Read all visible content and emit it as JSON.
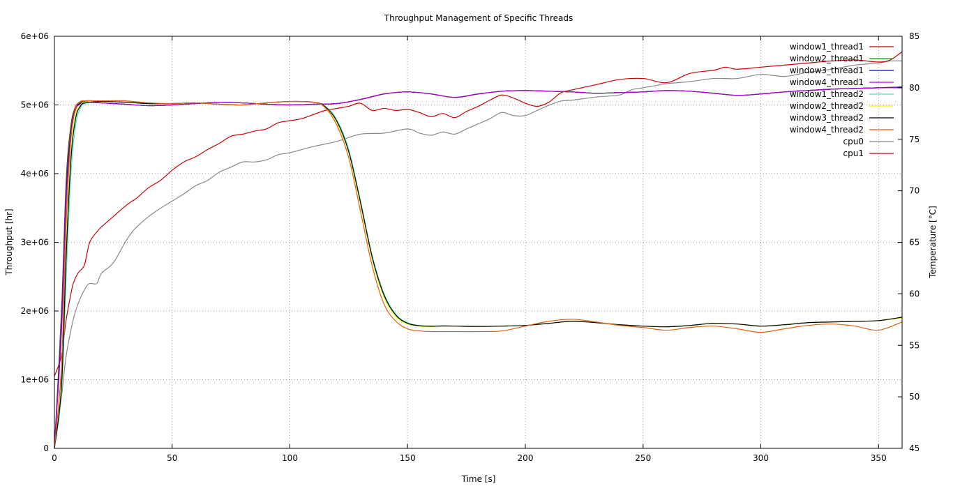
{
  "chart_data": {
    "type": "line",
    "title": "Throughput Management of Specific Threads",
    "xlabel": "Time [s]",
    "ylabel": "Throughput [hr]",
    "y2label": "Temperature [°C]",
    "xlim": [
      0,
      360
    ],
    "ylim": [
      0,
      6000000
    ],
    "y2lim": [
      45,
      85
    ],
    "grid": true,
    "legend_position": "top-right",
    "x_ticks": [
      0,
      50,
      100,
      150,
      200,
      250,
      300,
      350
    ],
    "x_tick_labels": [
      "0",
      "50",
      "100",
      "150",
      "200",
      "250",
      "300",
      "350"
    ],
    "y_ticks": [
      0,
      1000000,
      2000000,
      3000000,
      4000000,
      5000000,
      6000000
    ],
    "y_tick_labels": [
      "0",
      "1e+06",
      "2e+06",
      "3e+06",
      "4e+06",
      "5e+06",
      "6e+06"
    ],
    "y2_ticks": [
      45,
      50,
      55,
      60,
      65,
      70,
      75,
      80,
      85
    ],
    "y2_tick_labels": [
      "45",
      "50",
      "55",
      "60",
      "65",
      "70",
      "75",
      "80",
      "85"
    ],
    "series": [
      {
        "name": "window1_thread1",
        "color": "#cc0000",
        "axis": "y1",
        "x": [
          0,
          3,
          5,
          7,
          9,
          11,
          13,
          20,
          30,
          40,
          50,
          60,
          70,
          80,
          90,
          100,
          110,
          120,
          130,
          140,
          150,
          160,
          170,
          180,
          190,
          200,
          210,
          220,
          230,
          240,
          250,
          260,
          270,
          280,
          290,
          300,
          310,
          320,
          330,
          340,
          350,
          360
        ],
        "y": [
          0,
          2000000,
          3900000,
          4700000,
          4980000,
          5040000,
          5050000,
          5030000,
          5010000,
          4990000,
          5000000,
          5020000,
          5040000,
          5030000,
          5010000,
          5000000,
          5010000,
          5020000,
          5080000,
          5160000,
          5190000,
          5160000,
          5110000,
          5160000,
          5200000,
          5210000,
          5200000,
          5190000,
          5170000,
          5180000,
          5190000,
          5210000,
          5200000,
          5170000,
          5140000,
          5160000,
          5190000,
          5210000,
          5230000,
          5240000,
          5250000,
          5260000
        ]
      },
      {
        "name": "window2_thread1",
        "color": "#00a000",
        "axis": "y1",
        "x": [
          0,
          3,
          5,
          7,
          9,
          11,
          13,
          20,
          30,
          40,
          50,
          60,
          70,
          80,
          90,
          100,
          110,
          120,
          130,
          140,
          150,
          160,
          170,
          180,
          190,
          200,
          210,
          220,
          230,
          240,
          250,
          260,
          270,
          280,
          290,
          300,
          310,
          320,
          330,
          340,
          350,
          360
        ],
        "y": [
          0,
          1900000,
          3800000,
          4650000,
          4960000,
          5030000,
          5045000,
          5030000,
          5010000,
          4990000,
          5000000,
          5020000,
          5040000,
          5030000,
          5010000,
          5000000,
          5010000,
          5020000,
          5080000,
          5160000,
          5190000,
          5160000,
          5110000,
          5160000,
          5200000,
          5210000,
          5200000,
          5190000,
          5170000,
          5180000,
          5190000,
          5210000,
          5200000,
          5170000,
          5140000,
          5160000,
          5190000,
          5210000,
          5230000,
          5240000,
          5250000,
          5260000
        ]
      },
      {
        "name": "window3_thread1",
        "color": "#0000cc",
        "axis": "y1",
        "x": [
          0,
          3,
          5,
          7,
          9,
          11,
          13,
          20,
          30,
          40,
          50,
          60,
          70,
          80,
          90,
          100,
          110,
          120,
          130,
          140,
          150,
          160,
          170,
          180,
          190,
          200,
          210,
          220,
          230,
          240,
          250,
          260,
          270,
          280,
          290,
          300,
          310,
          320,
          330,
          340,
          350,
          360
        ],
        "y": [
          0,
          1800000,
          3700000,
          4600000,
          4950000,
          5020000,
          5040000,
          5030000,
          5010000,
          4990000,
          5000000,
          5020000,
          5040000,
          5030000,
          5010000,
          5000000,
          5010000,
          5020000,
          5080000,
          5160000,
          5190000,
          5160000,
          5110000,
          5160000,
          5200000,
          5210000,
          5200000,
          5190000,
          5170000,
          5180000,
          5190000,
          5210000,
          5200000,
          5170000,
          5140000,
          5160000,
          5190000,
          5210000,
          5230000,
          5240000,
          5250000,
          5260000
        ]
      },
      {
        "name": "window4_thread1",
        "color": "#b000d0",
        "axis": "y1",
        "x": [
          0,
          3,
          5,
          7,
          9,
          11,
          13,
          20,
          30,
          40,
          50,
          60,
          70,
          80,
          90,
          100,
          110,
          120,
          130,
          140,
          150,
          160,
          170,
          180,
          190,
          200,
          210,
          220,
          230,
          240,
          250,
          260,
          270,
          280,
          290,
          300,
          310,
          320,
          330,
          340,
          350,
          360
        ],
        "y": [
          0,
          1700000,
          3600000,
          4550000,
          4930000,
          5010000,
          5035000,
          5030000,
          5010000,
          4990000,
          5000000,
          5020000,
          5040000,
          5030000,
          5010000,
          5000000,
          5010000,
          5020000,
          5080000,
          5160000,
          5190000,
          5160000,
          5110000,
          5160000,
          5200000,
          5210000,
          5200000,
          5190000,
          5170000,
          5180000,
          5190000,
          5210000,
          5200000,
          5170000,
          5140000,
          5160000,
          5190000,
          5210000,
          5230000,
          5240000,
          5250000,
          5250000
        ]
      },
      {
        "name": "window1_thread2",
        "color": "#40e0d0",
        "axis": "y1",
        "x": [
          0,
          3,
          5,
          7,
          9,
          11,
          13,
          20,
          30,
          40,
          50,
          60,
          70,
          80,
          90,
          100,
          110,
          115,
          120,
          125,
          130,
          135,
          140,
          145,
          150,
          155,
          160,
          165,
          170,
          180,
          190,
          200,
          210,
          220,
          230,
          240,
          250,
          260,
          270,
          280,
          290,
          300,
          310,
          320,
          330,
          340,
          350,
          360
        ],
        "y": [
          0,
          800000,
          2500000,
          4000000,
          4700000,
          4950000,
          5020000,
          5050000,
          5040000,
          5020000,
          5020000,
          5030000,
          5010000,
          5000000,
          5030000,
          5050000,
          5040000,
          4980000,
          4780000,
          4350000,
          3600000,
          2800000,
          2250000,
          1950000,
          1830000,
          1790000,
          1780000,
          1785000,
          1780000,
          1775000,
          1780000,
          1790000,
          1820000,
          1850000,
          1830000,
          1800000,
          1780000,
          1770000,
          1790000,
          1820000,
          1810000,
          1780000,
          1800000,
          1830000,
          1840000,
          1850000,
          1860000,
          1900000
        ]
      },
      {
        "name": "window2_thread2",
        "color": "#f0f000",
        "axis": "y1",
        "x": [
          0,
          3,
          5,
          7,
          9,
          11,
          13,
          20,
          30,
          40,
          50,
          60,
          70,
          80,
          90,
          100,
          110,
          115,
          120,
          125,
          130,
          135,
          140,
          145,
          150,
          155,
          160,
          165,
          170,
          180,
          190,
          200,
          210,
          220,
          230,
          240,
          250,
          260,
          270,
          280,
          290,
          300,
          310,
          320,
          330,
          340,
          350,
          360
        ],
        "y": [
          0,
          1000000,
          3000000,
          4300000,
          4850000,
          5000000,
          5040000,
          5050000,
          5050000,
          5030000,
          5020000,
          5030000,
          5010000,
          5000000,
          5030000,
          5050000,
          5040000,
          4970000,
          4740000,
          4300000,
          3550000,
          2750000,
          2200000,
          1920000,
          1810000,
          1780000,
          1775000,
          1780000,
          1780000,
          1775000,
          1780000,
          1790000,
          1820000,
          1850000,
          1830000,
          1800000,
          1780000,
          1770000,
          1790000,
          1820000,
          1810000,
          1780000,
          1800000,
          1830000,
          1840000,
          1850000,
          1860000,
          1900000
        ]
      },
      {
        "name": "window3_thread2",
        "color": "#000000",
        "axis": "y1",
        "x": [
          0,
          3,
          5,
          7,
          9,
          11,
          13,
          20,
          30,
          40,
          50,
          60,
          70,
          80,
          90,
          100,
          110,
          115,
          120,
          125,
          130,
          135,
          140,
          145,
          150,
          155,
          160,
          165,
          170,
          180,
          190,
          200,
          210,
          220,
          230,
          240,
          250,
          260,
          270,
          280,
          290,
          300,
          310,
          320,
          330,
          340,
          350,
          360
        ],
        "y": [
          0,
          900000,
          2800000,
          4200000,
          4800000,
          4980000,
          5030000,
          5050000,
          5040000,
          5020000,
          5020000,
          5030000,
          5010000,
          5000000,
          5030000,
          5050000,
          5040000,
          4975000,
          4760000,
          4320000,
          3580000,
          2780000,
          2230000,
          1940000,
          1820000,
          1785000,
          1778000,
          1782000,
          1780000,
          1775000,
          1780000,
          1790000,
          1820000,
          1850000,
          1830000,
          1800000,
          1780000,
          1770000,
          1790000,
          1820000,
          1810000,
          1780000,
          1800000,
          1830000,
          1840000,
          1850000,
          1860000,
          1910000
        ]
      },
      {
        "name": "window4_thread2",
        "color": "#e06010",
        "axis": "y1",
        "x": [
          0,
          3,
          5,
          7,
          9,
          11,
          13,
          20,
          30,
          40,
          50,
          60,
          70,
          80,
          90,
          100,
          110,
          115,
          120,
          125,
          130,
          135,
          140,
          145,
          150,
          155,
          160,
          165,
          170,
          180,
          190,
          200,
          210,
          220,
          230,
          240,
          250,
          260,
          270,
          280,
          290,
          300,
          310,
          320,
          330,
          340,
          350,
          360
        ],
        "y": [
          0,
          1200000,
          3300000,
          4500000,
          4950000,
          5050000,
          5060000,
          5060000,
          5060000,
          5030000,
          5020000,
          5030000,
          5010000,
          5000000,
          5030000,
          5050000,
          5040000,
          4960000,
          4700000,
          4230000,
          3450000,
          2650000,
          2100000,
          1850000,
          1740000,
          1710000,
          1700000,
          1700000,
          1700000,
          1700000,
          1710000,
          1780000,
          1850000,
          1880000,
          1840000,
          1790000,
          1760000,
          1720000,
          1760000,
          1780000,
          1740000,
          1690000,
          1740000,
          1790000,
          1810000,
          1780000,
          1720000,
          1840000
        ]
      },
      {
        "name": "cpu0",
        "color": "#888888",
        "axis": "y2",
        "x": [
          0,
          3,
          5,
          8,
          10,
          13,
          15,
          18,
          20,
          25,
          30,
          33,
          35,
          40,
          45,
          50,
          55,
          60,
          65,
          70,
          75,
          80,
          85,
          90,
          95,
          100,
          110,
          120,
          130,
          140,
          150,
          155,
          160,
          165,
          170,
          175,
          180,
          185,
          190,
          195,
          200,
          205,
          210,
          215,
          220,
          230,
          240,
          245,
          250,
          255,
          260,
          270,
          280,
          290,
          300,
          310,
          320,
          330,
          340,
          350,
          355,
          360
        ],
        "y": [
          45,
          50,
          54,
          57.5,
          59,
          60.5,
          61,
          61,
          62,
          63,
          65,
          66,
          66.5,
          67.5,
          68.3,
          69,
          69.7,
          70.5,
          71,
          71.8,
          72.3,
          72.8,
          72.8,
          73,
          73.5,
          73.7,
          74.3,
          74.8,
          75.5,
          75.6,
          76,
          75.6,
          75.4,
          75.7,
          75.5,
          76,
          76.5,
          77,
          77.6,
          77.3,
          77.3,
          77.8,
          78.3,
          78.7,
          78.8,
          79.1,
          79.3,
          79.8,
          80,
          80.2,
          80.4,
          80.6,
          80.9,
          80.9,
          81.3,
          81.1,
          81.5,
          81.8,
          82.2,
          82.4,
          82.6,
          82.6
        ]
      },
      {
        "name": "cpu1",
        "color": "#cc0000",
        "axis": "y2",
        "x": [
          0,
          3,
          5,
          7,
          8,
          10,
          12,
          13,
          15,
          18,
          20,
          25,
          30,
          33,
          35,
          40,
          45,
          50,
          55,
          60,
          65,
          70,
          75,
          80,
          85,
          90,
          95,
          100,
          105,
          110,
          115,
          120,
          125,
          130,
          135,
          140,
          145,
          150,
          155,
          160,
          165,
          170,
          175,
          180,
          185,
          190,
          195,
          200,
          205,
          210,
          215,
          220,
          230,
          240,
          250,
          260,
          270,
          280,
          285,
          290,
          300,
          310,
          320,
          330,
          340,
          350,
          355,
          360
        ],
        "y": [
          52,
          54,
          57.5,
          60,
          61,
          62,
          62.5,
          63,
          65,
          66,
          66.5,
          67.5,
          68.5,
          69,
          69.3,
          70.3,
          71,
          72,
          72.8,
          73.3,
          74,
          74.6,
          75.3,
          75.5,
          75.8,
          76,
          76.6,
          76.8,
          77,
          77.4,
          77.8,
          78,
          78.2,
          78.5,
          77.8,
          78,
          77.8,
          77.9,
          77.6,
          77.2,
          77.5,
          77.1,
          77.7,
          78.2,
          78.8,
          79.3,
          79,
          78.5,
          78.2,
          78.6,
          79.5,
          79.8,
          80.3,
          80.8,
          80.9,
          80.5,
          81.4,
          81.7,
          82,
          81.8,
          82,
          82.2,
          82.4,
          82.6,
          82.7,
          82.5,
          82.7,
          83.5
        ]
      }
    ]
  }
}
